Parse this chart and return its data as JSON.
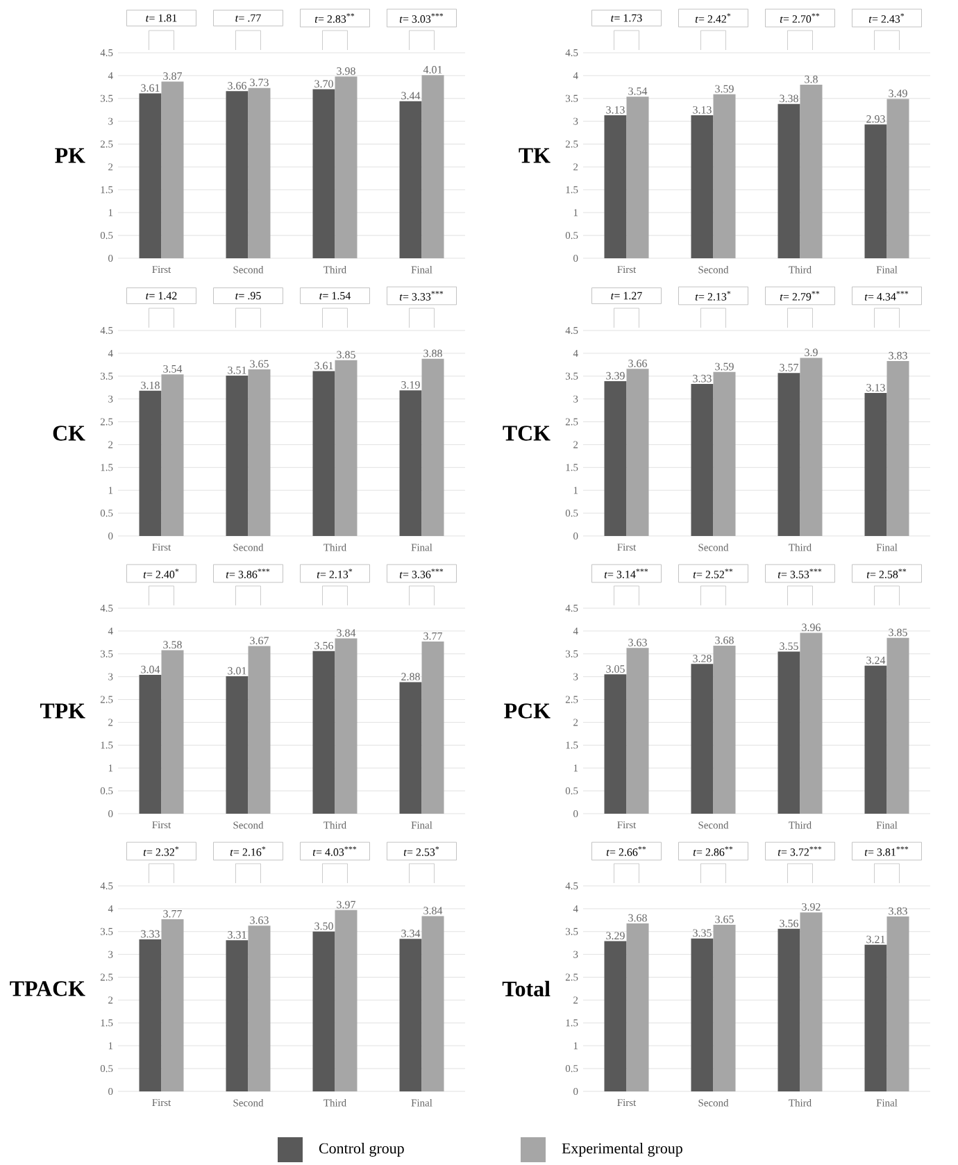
{
  "chart_data": [
    {
      "type": "bar",
      "title": "PK",
      "categories": [
        "First",
        "Second",
        "Third",
        "Final"
      ],
      "ylim": [
        0,
        4.5
      ],
      "yticks": [
        0,
        0.5,
        1,
        1.5,
        2,
        2.5,
        3,
        3.5,
        4,
        4.5
      ],
      "grid": "y",
      "annotations": [
        "*t*= 1.81",
        "*t*= .77",
        "*t*= 2.83$^{**}$",
        "*t*= 3.03$^{***}$"
      ],
      "series": [
        {
          "color": "#595959",
          "values": [
            3.61,
            3.66,
            3.7,
            3.44
          ],
          "value_labels": [
            "3.61",
            "3.66",
            "3.70",
            "3.44"
          ]
        },
        {
          "color": "#a6a6a6",
          "values": [
            3.87,
            3.73,
            3.98,
            4.01
          ],
          "value_labels": [
            "3.87",
            "3.73",
            "3.98",
            "4.01"
          ]
        }
      ]
    },
    {
      "type": "bar",
      "title": "TK",
      "categories": [
        "First",
        "Second",
        "Third",
        "Final"
      ],
      "ylim": [
        0,
        4.5
      ],
      "yticks": [
        0,
        0.5,
        1,
        1.5,
        2,
        2.5,
        3,
        3.5,
        4,
        4.5
      ],
      "grid": "y",
      "annotations": [
        "*t*= 1.73",
        "*t*= 2.42$^{*}$",
        "*t*= 2.70$^{**}$",
        "*t*= 2.43$^{*}$"
      ],
      "series": [
        {
          "color": "#595959",
          "values": [
            3.13,
            3.13,
            3.38,
            2.93
          ],
          "value_labels": [
            "3.13",
            "3.13",
            "3.38",
            "2.93"
          ]
        },
        {
          "color": "#a6a6a6",
          "values": [
            3.54,
            3.59,
            3.8,
            3.49
          ],
          "value_labels": [
            "3.54",
            "3.59",
            "3.8",
            "3.49"
          ]
        }
      ]
    },
    {
      "type": "bar",
      "title": "CK",
      "categories": [
        "First",
        "Second",
        "Third",
        "Final"
      ],
      "ylim": [
        0,
        4.5
      ],
      "yticks": [
        0,
        0.5,
        1,
        1.5,
        2,
        2.5,
        3,
        3.5,
        4,
        4.5
      ],
      "grid": "y",
      "annotations": [
        "*t*= 1.42",
        "*t*= .95",
        "*t*= 1.54",
        "*t*= 3.33$^{***}$"
      ],
      "series": [
        {
          "color": "#595959",
          "values": [
            3.18,
            3.51,
            3.61,
            3.19
          ],
          "value_labels": [
            "3.18",
            "3.51",
            "3.61",
            "3.19"
          ]
        },
        {
          "color": "#a6a6a6",
          "values": [
            3.54,
            3.65,
            3.85,
            3.88
          ],
          "value_labels": [
            "3.54",
            "3.65",
            "3.85",
            "3.88"
          ]
        }
      ]
    },
    {
      "type": "bar",
      "title": "TCK",
      "categories": [
        "First",
        "Second",
        "Third",
        "Final"
      ],
      "ylim": [
        0,
        4.5
      ],
      "yticks": [
        0,
        0.5,
        1,
        1.5,
        2,
        2.5,
        3,
        3.5,
        4,
        4.5
      ],
      "grid": "y",
      "annotations": [
        "*t*= 1.27",
        "*t*= 2.13$^{*}$",
        "*t*= 2.79$^{**}$",
        "*t*= 4.34$^{***}$"
      ],
      "series": [
        {
          "color": "#595959",
          "values": [
            3.39,
            3.33,
            3.57,
            3.13
          ],
          "value_labels": [
            "3.39",
            "3.33",
            "3.57",
            "3.13"
          ]
        },
        {
          "color": "#a6a6a6",
          "values": [
            3.66,
            3.59,
            3.9,
            3.83
          ],
          "value_labels": [
            "3.66",
            "3.59",
            "3.9",
            "3.83"
          ]
        }
      ]
    },
    {
      "type": "bar",
      "title": "TPK",
      "categories": [
        "First",
        "Second",
        "Third",
        "Final"
      ],
      "ylim": [
        0,
        4.5
      ],
      "yticks": [
        0,
        0.5,
        1,
        1.5,
        2,
        2.5,
        3,
        3.5,
        4,
        4.5
      ],
      "grid": "y",
      "annotations": [
        "*t*= 2.40$^{*}$",
        "*t*= 3.86$^{***}$",
        "*t*= 2.13$^{*}$",
        "*t*= 3.36$^{***}$"
      ],
      "series": [
        {
          "color": "#595959",
          "values": [
            3.04,
            3.01,
            3.56,
            2.88
          ],
          "value_labels": [
            "3.04",
            "3.01",
            "3.56",
            "2.88"
          ]
        },
        {
          "color": "#a6a6a6",
          "values": [
            3.58,
            3.67,
            3.84,
            3.77
          ],
          "value_labels": [
            "3.58",
            "3.67",
            "3.84",
            "3.77"
          ]
        }
      ]
    },
    {
      "type": "bar",
      "title": "PCK",
      "categories": [
        "First",
        "Second",
        "Third",
        "Final"
      ],
      "ylim": [
        0,
        4.5
      ],
      "yticks": [
        0,
        0.5,
        1,
        1.5,
        2,
        2.5,
        3,
        3.5,
        4,
        4.5
      ],
      "grid": "y",
      "annotations": [
        "*t*= 3.14$^{***}$",
        "*t*= 2.52$^{**}$",
        "*t*= 3.53$^{***}$",
        "*t*= 2.58$^{**}$"
      ],
      "series": [
        {
          "color": "#595959",
          "values": [
            3.05,
            3.28,
            3.55,
            3.24
          ],
          "value_labels": [
            "3.05",
            "3.28",
            "3.55",
            "3.24"
          ]
        },
        {
          "color": "#a6a6a6",
          "values": [
            3.63,
            3.68,
            3.96,
            3.85
          ],
          "value_labels": [
            "3.63",
            "3.68",
            "3.96",
            "3.85"
          ]
        }
      ]
    },
    {
      "type": "bar",
      "title": "TPACK",
      "categories": [
        "First",
        "Second",
        "Third",
        "Final"
      ],
      "ylim": [
        0,
        4.5
      ],
      "yticks": [
        0,
        0.5,
        1,
        1.5,
        2,
        2.5,
        3,
        3.5,
        4,
        4.5
      ],
      "grid": "y",
      "annotations": [
        "*t*= 2.32$^{*}$",
        "*t*= 2.16$^{*}$",
        "*t*= 4.03$^{***}$",
        "*t*= 2.53$^{*}$"
      ],
      "series": [
        {
          "color": "#595959",
          "values": [
            3.33,
            3.31,
            3.5,
            3.34
          ],
          "value_labels": [
            "3.33",
            "3.31",
            "3.50",
            "3.34"
          ]
        },
        {
          "color": "#a6a6a6",
          "values": [
            3.77,
            3.63,
            3.97,
            3.84
          ],
          "value_labels": [
            "3.77",
            "3.63",
            "3.97",
            "3.84"
          ]
        }
      ]
    },
    {
      "type": "bar",
      "title": "Total",
      "categories": [
        "First",
        "Second",
        "Third",
        "Final"
      ],
      "ylim": [
        0,
        4.5
      ],
      "yticks": [
        0,
        0.5,
        1,
        1.5,
        2,
        2.5,
        3,
        3.5,
        4,
        4.5
      ],
      "grid": "y",
      "legend": "bottom",
      "annotations": [
        "*t*= 2.66$^{**}$",
        "*t*= 2.86$^{**}$",
        "*t*= 3.72$^{***}$",
        "*t*= 3.81$^{***}$"
      ],
      "series": [
        {
          "name": "Control group",
          "color": "#595959",
          "values": [
            3.29,
            3.35,
            3.56,
            3.21
          ],
          "value_labels": [
            "3.29",
            "3.35",
            "3.56",
            "3.21"
          ]
        },
        {
          "name": "Experimental group",
          "color": "#a6a6a6",
          "values": [
            3.68,
            3.65,
            3.92,
            3.83
          ],
          "value_labels": [
            "3.68",
            "3.65",
            "3.92",
            "3.83"
          ]
        }
      ]
    }
  ]
}
